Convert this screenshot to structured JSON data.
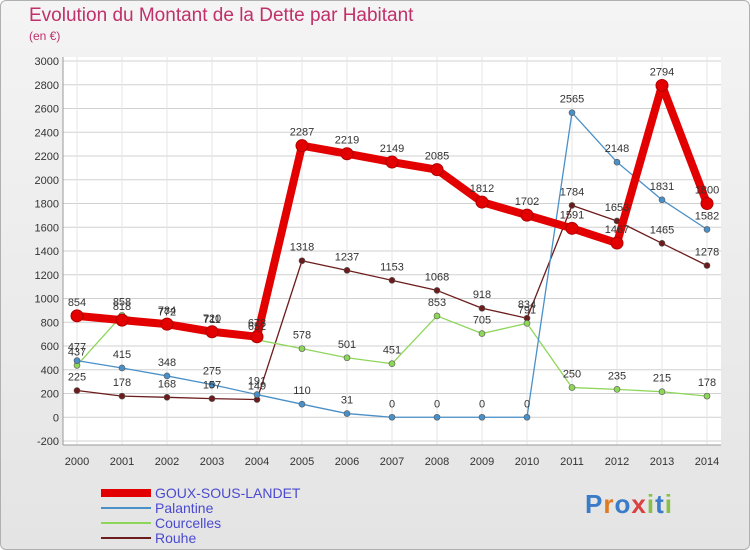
{
  "header": {
    "title": "Evolution du Montant de la Dette par Habitant",
    "subtitle": "(en €)"
  },
  "colors": {
    "title": "#c0306a",
    "legend_text": "#4a4ad0",
    "grid": "#d0d0d0",
    "tick_text": "#333333"
  },
  "logo": {
    "text": "Proxiti"
  },
  "chart_data": {
    "type": "line",
    "title": "Evolution du Montant de la Dette par Habitant",
    "subtitle": "(en €)",
    "x": [
      "2000",
      "2001",
      "2002",
      "2003",
      "2004",
      "2005",
      "2006",
      "2007",
      "2008",
      "2009",
      "2010",
      "2011",
      "2012",
      "2013",
      "2014"
    ],
    "ylim": [
      -200,
      3000
    ],
    "yticks": [
      -200,
      0,
      200,
      400,
      600,
      800,
      1000,
      1200,
      1400,
      1600,
      1800,
      2000,
      2200,
      2400,
      2600,
      2800,
      3000
    ],
    "grid": true,
    "legend_position": "bottom-left",
    "series": [
      {
        "name": "GOUX-SOUS-LANDET",
        "color": "#e30000",
        "values": [
          854,
          818,
          784,
          720,
          678,
          2287,
          2219,
          2149,
          2085,
          1812,
          1702,
          1591,
          1467,
          2794,
          1800
        ],
        "labels": [
          "854",
          "818",
          "784",
          "720",
          "678",
          "2287",
          "2219",
          "2149",
          "2085",
          "1812",
          "1702",
          "1591",
          "1467",
          "2794",
          "1800"
        ]
      },
      {
        "name": "Palantine",
        "color": "#4a90c8",
        "values": [
          477,
          415,
          348,
          275,
          191,
          110,
          31,
          0,
          0,
          0,
          0,
          2565,
          2148,
          1831,
          1582
        ],
        "labels": [
          "477",
          "415",
          "348",
          "275",
          "191",
          "110",
          "31",
          "0",
          "0",
          "0",
          "0",
          "2565",
          "2148",
          "1831",
          "1582"
        ]
      },
      {
        "name": "Courcelles",
        "color": "#8ed65a",
        "values": [
          437,
          858,
          772,
          711,
          652,
          578,
          501,
          451,
          853,
          705,
          791,
          250,
          235,
          215,
          178
        ],
        "labels": [
          "437",
          "858",
          "772",
          "711",
          "652",
          "578",
          "501",
          "451",
          "853",
          "705",
          "791",
          "250",
          "235",
          "215",
          "178"
        ]
      },
      {
        "name": "Rouhe",
        "color": "#6b1c1c",
        "values": [
          225,
          178,
          168,
          157,
          149,
          1318,
          1237,
          1153,
          1068,
          918,
          834,
          1784,
          1653,
          1465,
          1278
        ],
        "labels": [
          "225",
          "178",
          "168",
          "157",
          "149",
          "1318",
          "1237",
          "1153",
          "1068",
          "918",
          "834",
          "1784",
          "1653",
          "1465",
          "1278"
        ]
      }
    ]
  }
}
